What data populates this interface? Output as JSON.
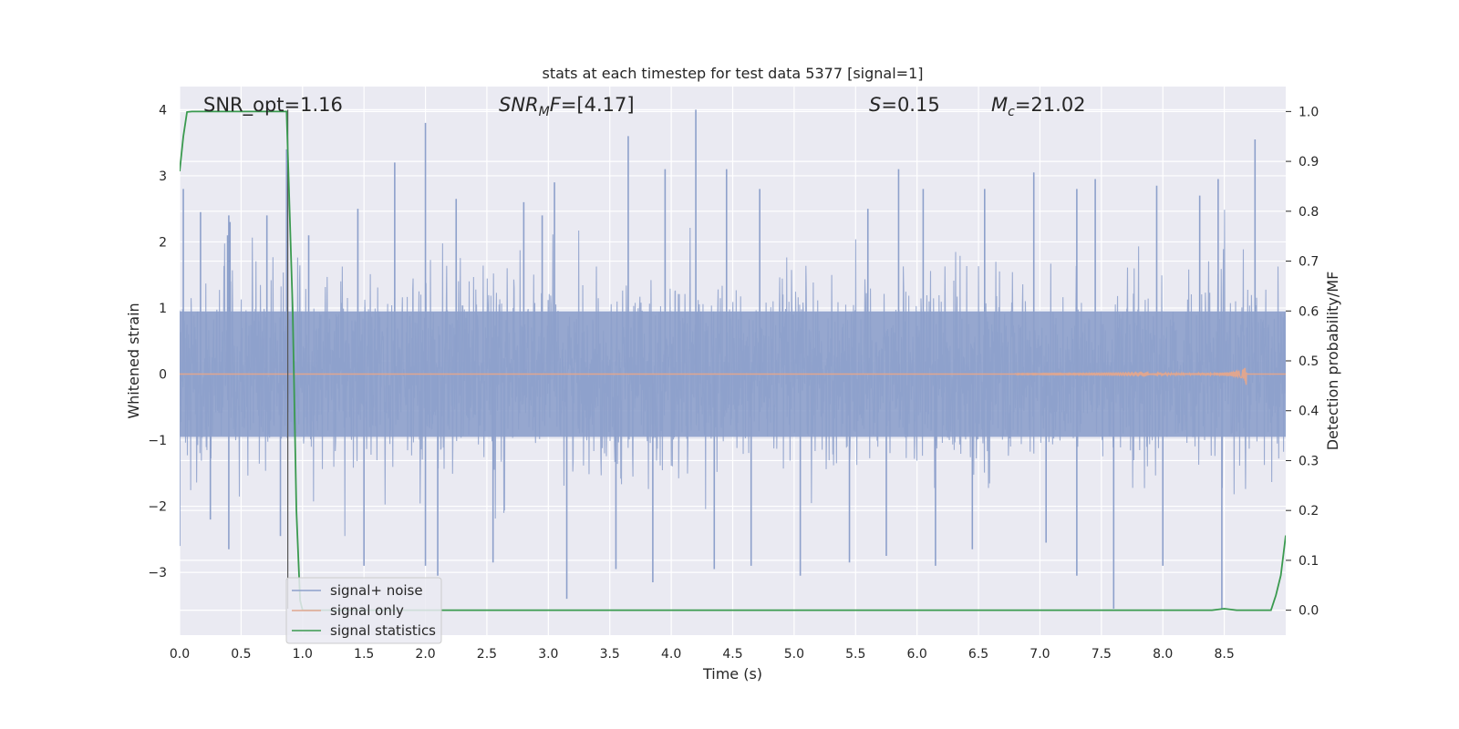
{
  "chart_data": {
    "type": "line",
    "title": "stats at each timestep for test data 5377 [signal=1]",
    "xlabel": "Time (s)",
    "ylabel": "Whitened strain",
    "y2label": "Detection probability/MF",
    "xlim": [
      0.0,
      9.0
    ],
    "ylim": [
      -3.95,
      4.35
    ],
    "y2lim": [
      -0.05,
      1.05
    ],
    "grid": true,
    "legend_position": "lower-left",
    "x_ticks": [
      0.0,
      0.5,
      1.0,
      1.5,
      2.0,
      2.5,
      3.0,
      3.5,
      4.0,
      4.5,
      5.0,
      5.5,
      6.0,
      6.5,
      7.0,
      7.5,
      8.0,
      8.5
    ],
    "x_tick_labels": [
      "0.0",
      "0.5",
      "1.0",
      "1.5",
      "2.0",
      "2.5",
      "3.0",
      "3.5",
      "4.0",
      "4.5",
      "5.0",
      "5.5",
      "6.0",
      "6.5",
      "7.0",
      "7.5",
      "8.0",
      "8.5"
    ],
    "y_ticks": [
      -3,
      -2,
      -1,
      0,
      1,
      2,
      3,
      4
    ],
    "y_tick_labels": [
      "−3",
      "−2",
      "−1",
      "0",
      "1",
      "2",
      "3",
      "4"
    ],
    "y2_ticks": [
      0.0,
      0.1,
      0.2,
      0.3,
      0.4,
      0.5,
      0.6,
      0.7,
      0.8,
      0.9,
      1.0
    ],
    "y2_tick_labels": [
      "0.0",
      "0.1",
      "0.2",
      "0.3",
      "0.4",
      "0.5",
      "0.6",
      "0.7",
      "0.8",
      "0.9",
      "1.0"
    ],
    "annotations": [
      {
        "id": "snr_opt",
        "text": "SNR_opt=1.16"
      },
      {
        "id": "snr_mf",
        "text": "=[4.17]",
        "math_main": "SNR",
        "math_sub": "M",
        "math_tail": "F"
      },
      {
        "id": "s",
        "text": "=0.15",
        "math_main": "S"
      },
      {
        "id": "mc",
        "text": "=21.02",
        "math_main": "M",
        "math_sub": "c"
      }
    ],
    "vertical_marker_x": 0.88,
    "series": [
      {
        "name": "signal+ noise",
        "color": "#8da0cb",
        "axis": "left",
        "description_values": {
          "noise_band": [
            -1.3,
            1.2
          ],
          "peak_max": 4.0,
          "trough_min": -3.55
        }
      },
      {
        "name": "signal only",
        "color": "#e0a68f",
        "axis": "left",
        "chirp": {
          "start": 6.8,
          "peak": 8.68,
          "amplitude_max": 0.22
        }
      },
      {
        "name": "signal statistics",
        "color": "#3a9a4f",
        "axis": "right",
        "x": [
          0.0,
          0.03,
          0.06,
          0.1,
          0.15,
          0.3,
          0.6,
          0.8,
          0.87,
          0.92,
          0.95,
          0.98,
          1.0,
          1.05,
          2.0,
          4.0,
          6.0,
          8.0,
          8.4,
          8.5,
          8.6,
          8.7,
          8.88,
          8.92,
          8.96,
          9.0
        ],
        "values": [
          0.88,
          0.95,
          0.999,
          1.0,
          1.0,
          1.0,
          1.0,
          1.0,
          1.0,
          0.6,
          0.2,
          0.02,
          0.0,
          0.0,
          0.0,
          0.0,
          0.0,
          0.0,
          0.0,
          0.003,
          0.0,
          0.0,
          0.0,
          0.03,
          0.07,
          0.15
        ]
      }
    ],
    "spikes_up": [
      [
        0.03,
        2.8
      ],
      [
        0.17,
        2.45
      ],
      [
        0.41,
        2.3
      ],
      [
        0.39,
        2.1
      ],
      [
        0.4,
        2.4
      ],
      [
        0.71,
        2.4
      ],
      [
        0.87,
        3.4
      ],
      [
        1.05,
        2.1
      ],
      [
        1.45,
        2.5
      ],
      [
        1.75,
        3.2
      ],
      [
        2.0,
        3.8
      ],
      [
        2.25,
        2.65
      ],
      [
        2.8,
        2.6
      ],
      [
        2.95,
        2.4
      ],
      [
        3.05,
        2.9
      ],
      [
        3.65,
        3.6
      ],
      [
        3.95,
        3.1
      ],
      [
        4.2,
        4.0
      ],
      [
        4.45,
        3.1
      ],
      [
        4.72,
        2.8
      ],
      [
        5.6,
        2.5
      ],
      [
        5.85,
        3.1
      ],
      [
        6.05,
        2.8
      ],
      [
        6.55,
        2.8
      ],
      [
        6.95,
        3.05
      ],
      [
        7.3,
        2.8
      ],
      [
        7.45,
        2.95
      ],
      [
        7.95,
        2.85
      ],
      [
        8.3,
        2.7
      ],
      [
        8.45,
        2.95
      ],
      [
        8.75,
        3.55
      ]
    ],
    "spikes_down": [
      [
        0.0,
        -2.6
      ],
      [
        0.25,
        -2.2
      ],
      [
        0.4,
        -2.65
      ],
      [
        0.82,
        -2.45
      ],
      [
        1.5,
        -2.9
      ],
      [
        2.0,
        -2.9
      ],
      [
        2.1,
        -3.05
      ],
      [
        2.55,
        -2.85
      ],
      [
        3.15,
        -3.4
      ],
      [
        3.55,
        -2.95
      ],
      [
        3.85,
        -3.15
      ],
      [
        4.35,
        -2.95
      ],
      [
        4.65,
        -2.9
      ],
      [
        5.05,
        -3.05
      ],
      [
        5.45,
        -2.85
      ],
      [
        5.75,
        -2.75
      ],
      [
        6.15,
        -2.9
      ],
      [
        6.45,
        -2.65
      ],
      [
        7.05,
        -2.55
      ],
      [
        7.3,
        -3.05
      ],
      [
        7.6,
        -3.55
      ],
      [
        8.0,
        -2.9
      ],
      [
        8.48,
        -3.55
      ]
    ],
    "legend_entries": [
      "signal+ noise",
      "signal only",
      "signal statistics"
    ]
  }
}
